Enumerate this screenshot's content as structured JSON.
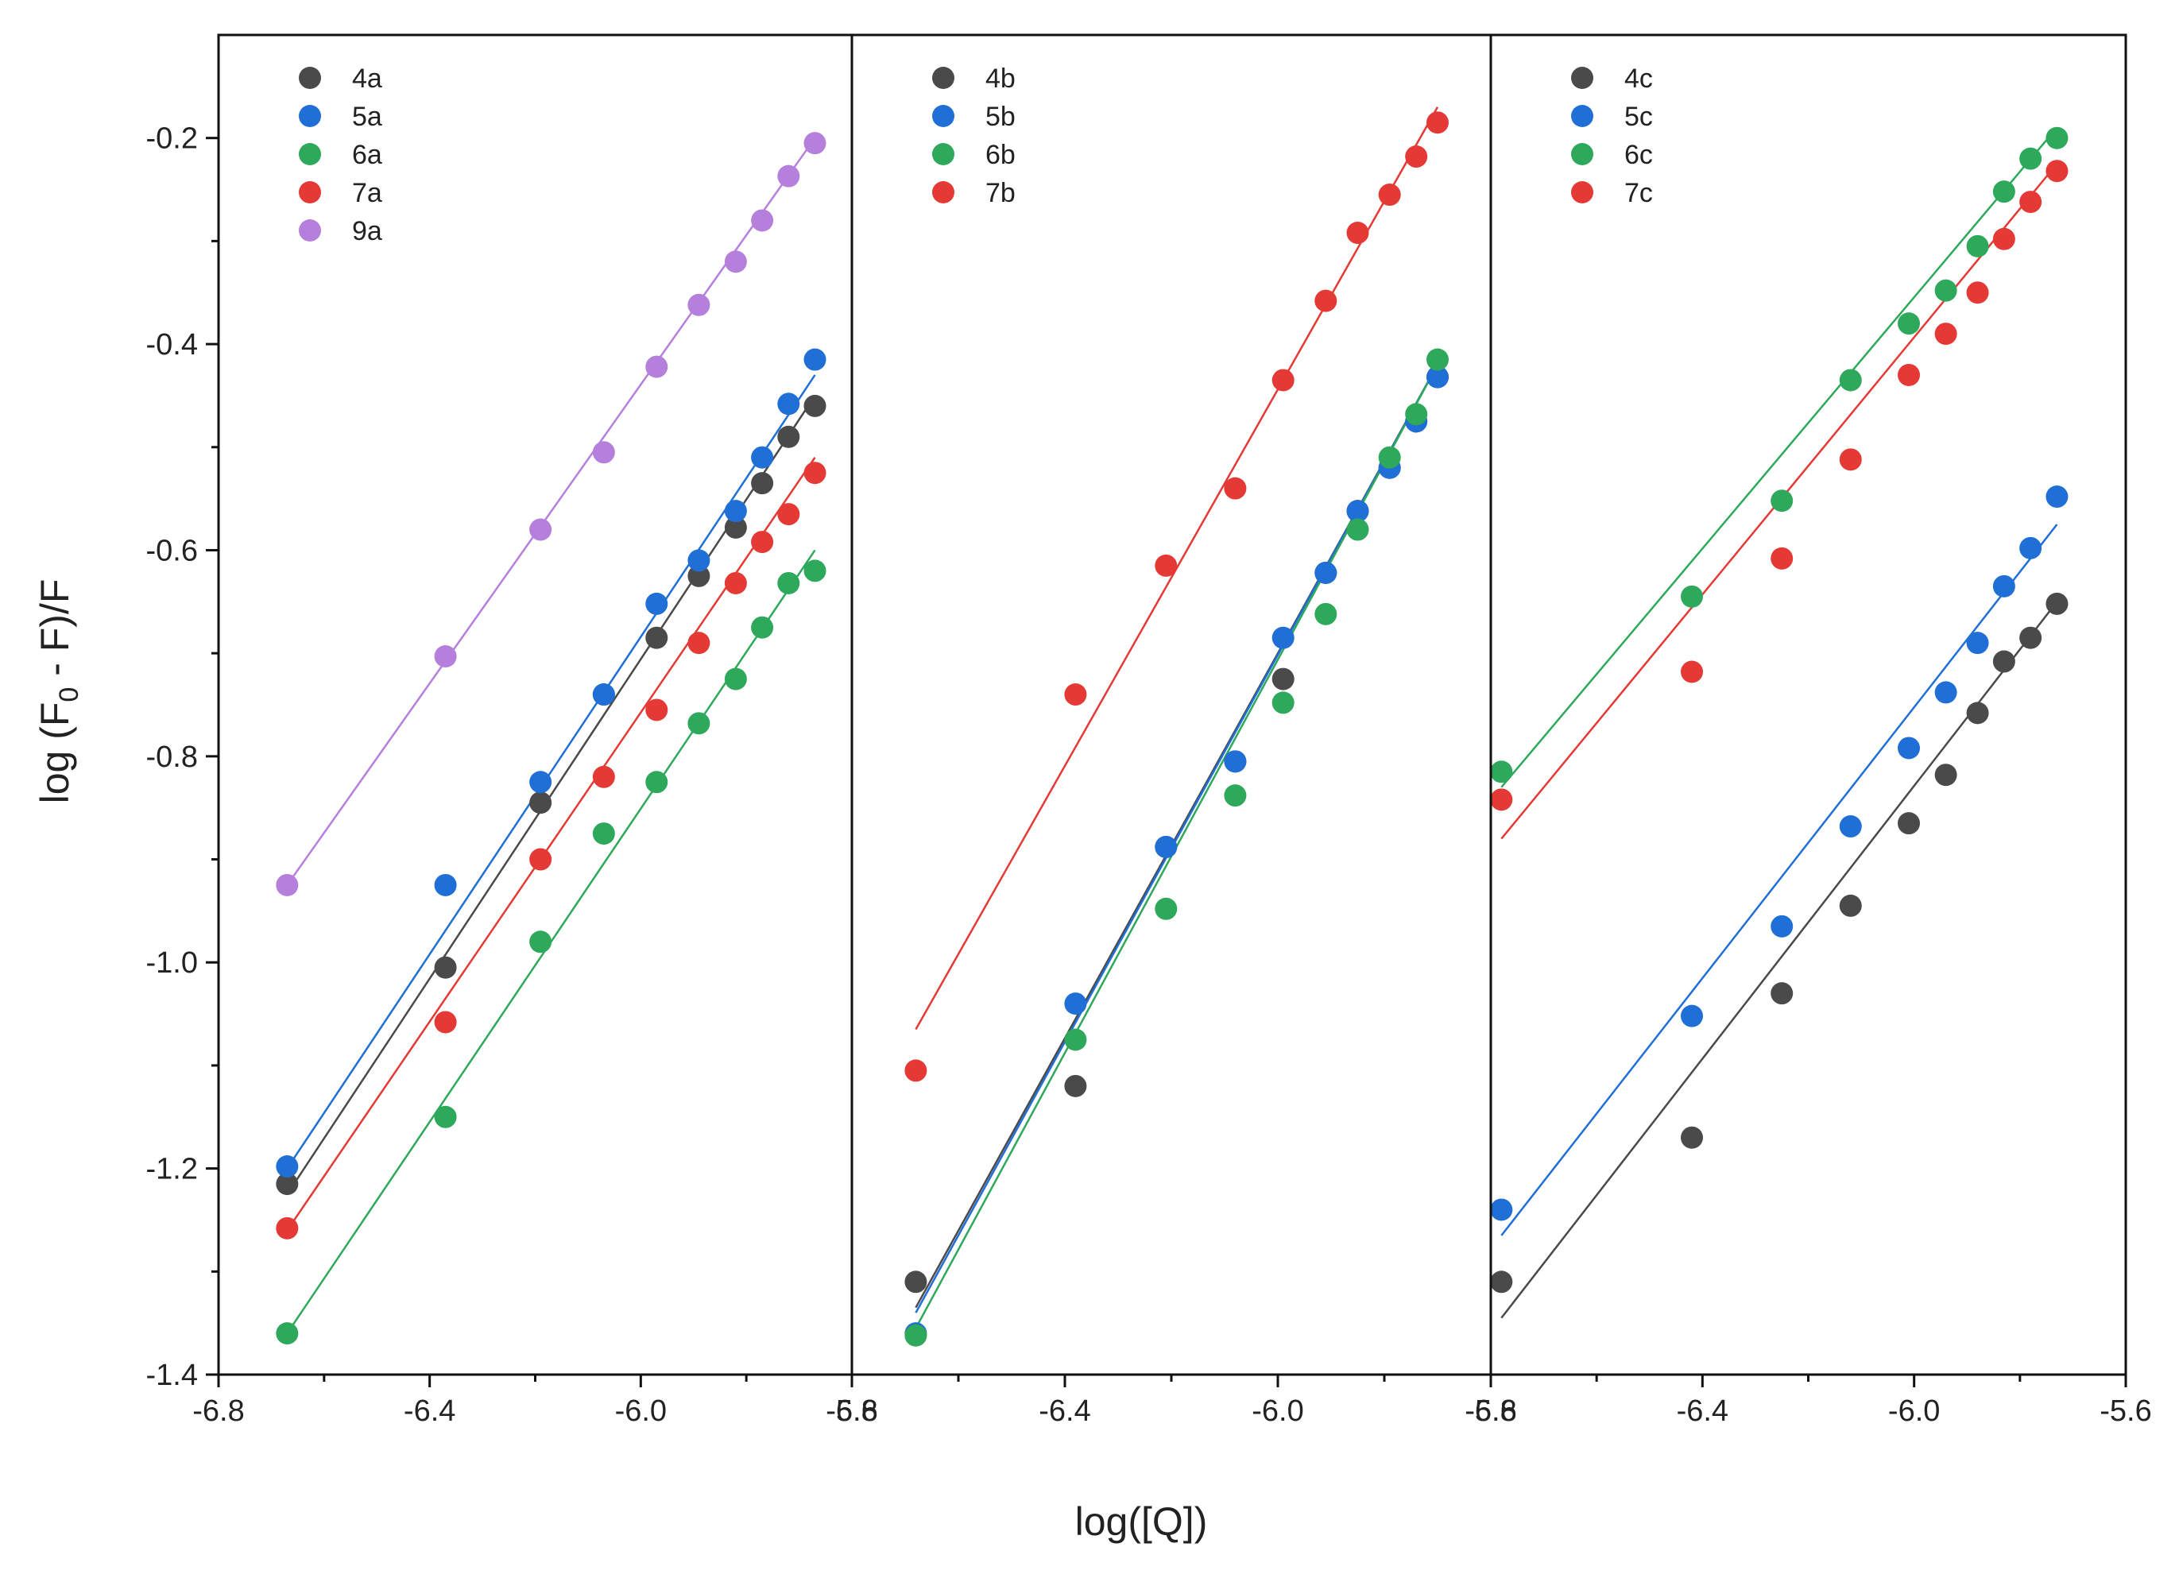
{
  "chart_data": {
    "type": "scatter",
    "ylabel": "log (F0 - F)/F",
    "ylabel_parts": {
      "before": "log (F",
      "subscript": "0",
      "after": " - F)/F"
    },
    "xlabel": "log([Q])",
    "ylim": [
      -1.4,
      -0.1
    ],
    "y_major_ticks": [
      -1.4,
      -1.2,
      -1.0,
      -0.8,
      -0.6,
      -0.4,
      -0.2
    ],
    "y_tick_labels": [
      "-1.4",
      "-1.2",
      "-1.0",
      "-0.8",
      "-0.6",
      "-0.4",
      "-0.2"
    ],
    "y_minor_ticks": [
      -1.3,
      -1.1,
      -0.9,
      -0.7,
      -0.5,
      -0.3
    ],
    "panels": [
      {
        "id": "a",
        "xlim": [
          -6.8,
          -5.6
        ],
        "x_major_ticks": [
          -6.8,
          -6.4,
          -6.0,
          -5.6
        ],
        "x_tick_labels": [
          "-6.8",
          "-6.4",
          "-6.0",
          "-5.6"
        ],
        "x_minor_ticks": [
          -6.6,
          -6.2,
          -5.8
        ],
        "series": [
          {
            "name": "4a",
            "color": "#4a4a4a",
            "x": [
              -6.67,
              -6.37,
              -6.19,
              -6.07,
              -5.97,
              -5.89,
              -5.82,
              -5.77,
              -5.72,
              -5.67
            ],
            "y": [
              -1.215,
              -1.005,
              -0.845,
              -0.74,
              -0.685,
              -0.625,
              -0.578,
              -0.535,
              -0.49,
              -0.46
            ],
            "fit": [
              [
                -6.67,
                -1.225
              ],
              [
                -5.67,
                -0.45
              ]
            ]
          },
          {
            "name": "5a",
            "color": "#1f6fd6",
            "x": [
              -6.67,
              -6.37,
              -6.19,
              -6.07,
              -5.97,
              -5.89,
              -5.82,
              -5.77,
              -5.72,
              -5.67
            ],
            "y": [
              -1.198,
              -0.925,
              -0.825,
              -0.74,
              -0.652,
              -0.61,
              -0.562,
              -0.51,
              -0.458,
              -0.415
            ],
            "fit": [
              [
                -6.67,
                -1.2
              ],
              [
                -5.67,
                -0.43
              ]
            ]
          },
          {
            "name": "6a",
            "color": "#2ea85a",
            "x": [
              -6.67,
              -6.37,
              -6.19,
              -6.07,
              -5.97,
              -5.89,
              -5.82,
              -5.77,
              -5.72,
              -5.67
            ],
            "y": [
              -1.36,
              -1.15,
              -0.98,
              -0.875,
              -0.825,
              -0.768,
              -0.725,
              -0.675,
              -0.632,
              -0.62
            ],
            "fit": [
              [
                -6.67,
                -1.36
              ],
              [
                -5.67,
                -0.6
              ]
            ]
          },
          {
            "name": "7a",
            "color": "#e53935",
            "x": [
              -6.67,
              -6.37,
              -6.19,
              -6.07,
              -5.97,
              -5.89,
              -5.82,
              -5.77,
              -5.72,
              -5.67
            ],
            "y": [
              -1.258,
              -1.058,
              -0.9,
              -0.82,
              -0.755,
              -0.69,
              -0.632,
              -0.592,
              -0.565,
              -0.525
            ],
            "fit": [
              [
                -6.67,
                -1.26
              ],
              [
                -5.67,
                -0.51
              ]
            ]
          },
          {
            "name": "9a",
            "color": "#b57fdc",
            "x": [
              -6.67,
              -6.37,
              -6.19,
              -6.07,
              -5.97,
              -5.89,
              -5.82,
              -5.77,
              -5.72,
              -5.67
            ],
            "y": [
              -0.925,
              -0.703,
              -0.58,
              -0.505,
              -0.422,
              -0.362,
              -0.32,
              -0.28,
              -0.237,
              -0.205
            ],
            "fit": [
              [
                -6.67,
                -0.925
              ],
              [
                -5.67,
                -0.2
              ]
            ]
          }
        ]
      },
      {
        "id": "b",
        "xlim": [
          -6.8,
          -5.6
        ],
        "x_major_ticks": [
          -6.8,
          -6.4,
          -6.0,
          -5.6
        ],
        "x_tick_labels": [
          "-6.8",
          "-6.4",
          "-6.0",
          "-5.6"
        ],
        "x_minor_ticks": [
          -6.6,
          -6.2,
          -5.8
        ],
        "series": [
          {
            "name": "4b",
            "color": "#4a4a4a",
            "x": [
              -6.68,
              -6.38,
              -6.21,
              -6.08,
              -5.99,
              -5.91,
              -5.85,
              -5.79,
              -5.74,
              -5.7
            ],
            "y": [
              -1.31,
              -1.12,
              -0.888,
              -0.805,
              -0.725,
              -0.622,
              -0.562,
              -0.52,
              -0.475,
              -0.432
            ],
            "fit": [
              [
                -6.68,
                -1.335
              ],
              [
                -5.7,
                -0.42
              ]
            ]
          },
          {
            "name": "5b",
            "color": "#1f6fd6",
            "x": [
              -6.68,
              -6.38,
              -6.21,
              -6.08,
              -5.99,
              -5.91,
              -5.85,
              -5.79,
              -5.74,
              -5.7
            ],
            "y": [
              -1.36,
              -1.04,
              -0.888,
              -0.805,
              -0.685,
              -0.622,
              -0.562,
              -0.52,
              -0.475,
              -0.432
            ],
            "fit": [
              [
                -6.68,
                -1.34
              ],
              [
                -5.7,
                -0.42
              ]
            ]
          },
          {
            "name": "6b",
            "color": "#2ea85a",
            "x": [
              -6.68,
              -6.38,
              -6.21,
              -6.08,
              -5.99,
              -5.91,
              -5.85,
              -5.79,
              -5.74,
              -5.7
            ],
            "y": [
              -1.362,
              -1.075,
              -0.948,
              -0.838,
              -0.748,
              -0.662,
              -0.58,
              -0.51,
              -0.468,
              -0.415
            ],
            "fit": [
              [
                -6.68,
                -1.355
              ],
              [
                -5.7,
                -0.42
              ]
            ]
          },
          {
            "name": "7b",
            "color": "#e53935",
            "x": [
              -6.68,
              -6.38,
              -6.21,
              -6.08,
              -5.99,
              -5.91,
              -5.85,
              -5.79,
              -5.74,
              -5.7
            ],
            "y": [
              -1.105,
              -0.74,
              -0.615,
              -0.54,
              -0.435,
              -0.358,
              -0.292,
              -0.255,
              -0.218,
              -0.185
            ],
            "fit": [
              [
                -6.68,
                -1.065
              ],
              [
                -5.7,
                -0.17
              ]
            ]
          }
        ]
      },
      {
        "id": "c",
        "xlim": [
          -6.8,
          -5.6
        ],
        "x_major_ticks": [
          -6.8,
          -6.4,
          -6.0,
          -5.6
        ],
        "x_tick_labels": [
          "-6.8",
          "-6.4",
          "-6.0",
          "-5.6"
        ],
        "x_minor_ticks": [
          -6.6,
          -6.2,
          -5.8
        ],
        "series": [
          {
            "name": "4c",
            "color": "#4a4a4a",
            "x": [
              -6.78,
              -6.42,
              -6.25,
              -6.12,
              -6.01,
              -5.94,
              -5.88,
              -5.83,
              -5.78,
              -5.73
            ],
            "y": [
              -1.31,
              -1.17,
              -1.03,
              -0.945,
              -0.865,
              -0.818,
              -0.758,
              -0.708,
              -0.685,
              -0.652
            ],
            "fit": [
              [
                -6.78,
                -1.345
              ],
              [
                -5.73,
                -0.65
              ]
            ]
          },
          {
            "name": "5c",
            "color": "#1f6fd6",
            "x": [
              -6.78,
              -6.42,
              -6.25,
              -6.12,
              -6.01,
              -5.94,
              -5.88,
              -5.83,
              -5.78,
              -5.73
            ],
            "y": [
              -1.24,
              -1.052,
              -0.965,
              -0.868,
              -0.792,
              -0.738,
              -0.69,
              -0.635,
              -0.598,
              -0.548
            ],
            "fit": [
              [
                -6.78,
                -1.265
              ],
              [
                -5.73,
                -0.575
              ]
            ]
          },
          {
            "name": "6c",
            "color": "#2ea85a",
            "x": [
              -6.78,
              -6.42,
              -6.25,
              -6.12,
              -6.01,
              -5.94,
              -5.88,
              -5.83,
              -5.78,
              -5.73
            ],
            "y": [
              -0.815,
              -0.645,
              -0.552,
              -0.435,
              -0.38,
              -0.348,
              -0.305,
              -0.252,
              -0.22,
              -0.2
            ],
            "fit": [
              [
                -6.78,
                -0.83
              ],
              [
                -5.73,
                -0.19
              ]
            ]
          },
          {
            "name": "7c",
            "color": "#e53935",
            "x": [
              -6.78,
              -6.42,
              -6.25,
              -6.12,
              -6.01,
              -5.94,
              -5.88,
              -5.83,
              -5.78,
              -5.73
            ],
            "y": [
              -0.842,
              -0.718,
              -0.608,
              -0.512,
              -0.43,
              -0.39,
              -0.35,
              -0.298,
              -0.262,
              -0.232
            ],
            "fit": [
              [
                -6.78,
                -0.88
              ],
              [
                -5.73,
                -0.225
              ]
            ]
          }
        ]
      }
    ]
  }
}
